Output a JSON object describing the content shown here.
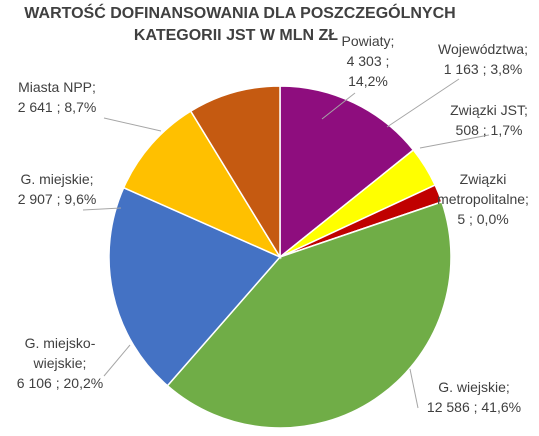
{
  "chart_data": {
    "type": "pie",
    "title_lines": [
      "WARTOŚĆ DOFINANSOWANIA DLA POSZCZEGÓLNYCH",
      "KATEGORII JST W MLN ZŁ"
    ],
    "slices": [
      {
        "name": "Powiaty",
        "value": 4303,
        "value_label": "4 303",
        "percent_label": "14,2%",
        "color": "#8e0d7e",
        "label_lines": [
          "Powiaty;",
          "4 303    ;",
          "14,2%"
        ]
      },
      {
        "name": "Województwa",
        "value": 1163,
        "value_label": "1 163",
        "percent_label": "3,8%",
        "color": "#ffff00",
        "label_lines": [
          "Województwa;",
          "1 163    ; 3,8%"
        ]
      },
      {
        "name": "Związki JST",
        "value": 508,
        "value_label": "508",
        "percent_label": "1,7%",
        "color": "#c00000",
        "label_lines": [
          "Związki JST;",
          "508    ; 1,7%"
        ]
      },
      {
        "name": "Związki metropolitalne",
        "value": 5,
        "value_label": "5",
        "percent_label": "0,0%",
        "color": "#2e75b6",
        "label_lines": [
          "Związki",
          "metropolitalne;",
          "5    ; 0,0%"
        ]
      },
      {
        "name": "G. wiejskie",
        "value": 12586,
        "value_label": "12 586",
        "percent_label": "41,6%",
        "color": "#70ad47",
        "label_lines": [
          "G. wiejskie;",
          "12 586    ; 41,6%"
        ]
      },
      {
        "name": "G. miejsko-wiejskie",
        "value": 6106,
        "value_label": "6 106",
        "percent_label": "20,2%",
        "color": "#4472c4",
        "label_lines": [
          "G. miejsko-",
          "wiejskie;",
          "6 106    ; 20,2%"
        ]
      },
      {
        "name": "G. miejskie",
        "value": 2907,
        "value_label": "2 907",
        "percent_label": "9,6%",
        "color": "#ffc000",
        "label_lines": [
          "G. miejskie;",
          "2 907    ; 9,6%"
        ]
      },
      {
        "name": "Miasta NPP",
        "value": 2641,
        "value_label": "2 641",
        "percent_label": "8,7%",
        "color": "#c55a11",
        "label_lines": [
          "Miasta NPP;",
          "2 641    ; 8,7%"
        ]
      }
    ]
  }
}
